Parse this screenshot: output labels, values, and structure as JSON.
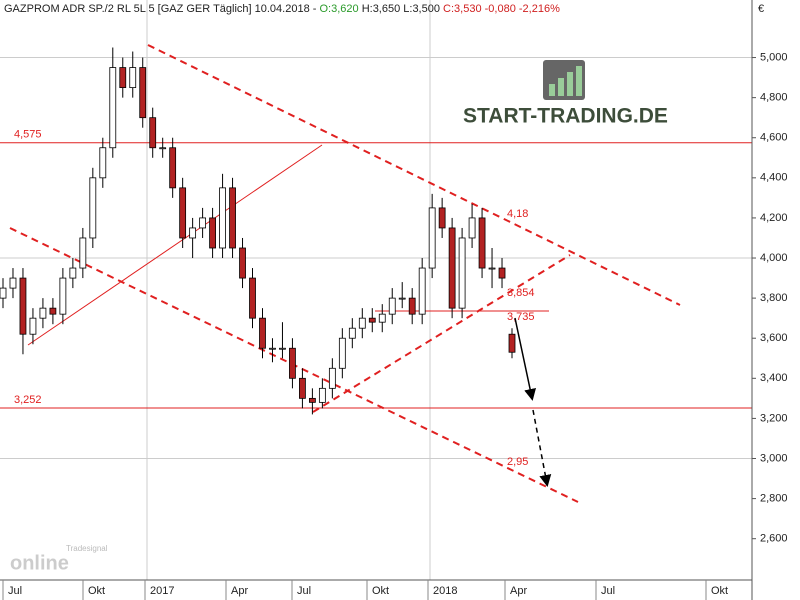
{
  "chart_data": {
    "type": "candlestick",
    "header": {
      "title": "GAZPROM ADR SP./2 RL 5L 5 [GAZ GER  Täglich] 10.04.2018 -",
      "open_text": "O:3,620",
      "high_low_text": "H:3,650 L:3,500",
      "close_text": "C:3,530 -0,080 -2,216%"
    },
    "currency": "€",
    "logo": "START-TRADING.DE",
    "source_logo": {
      "brand": "Tradesignal",
      "word": "online"
    },
    "x_labels": [
      "Jul",
      "Okt",
      "2017",
      "Apr",
      "Jul",
      "Okt",
      "2018",
      "Apr",
      "Jul",
      "Okt"
    ],
    "ylim": [
      2.394,
      5.287
    ],
    "yticks": [
      {
        "value": 2.6,
        "label": "2,600"
      },
      {
        "value": 2.8,
        "label": "2,800"
      },
      {
        "value": 3,
        "label": "3,000"
      },
      {
        "value": 3.2,
        "label": "3,200"
      },
      {
        "value": 3.4,
        "label": "3,400"
      },
      {
        "value": 3.6,
        "label": "3,600"
      },
      {
        "value": 3.8,
        "label": "3,800"
      },
      {
        "value": 4,
        "label": "4,000"
      },
      {
        "value": 4.2,
        "label": "4,200"
      },
      {
        "value": 4.4,
        "label": "4,400"
      },
      {
        "value": 4.6,
        "label": "4,600"
      },
      {
        "value": 4.8,
        "label": "4,800"
      },
      {
        "value": 5,
        "label": "5,000"
      }
    ],
    "grid": true,
    "up_color": "#ffffff",
    "down_color": "#b22222",
    "level_color": "#e02020",
    "levels": [
      {
        "value": 4.575,
        "label": "4,575"
      },
      {
        "value": 3.252,
        "label": "3,252"
      }
    ],
    "annotations": [
      "4,18",
      "3,854",
      "3,735",
      "2,95"
    ],
    "open": [
      3.8,
      3.85,
      3.9,
      3.62,
      3.7,
      3.75,
      3.72,
      3.9,
      3.95,
      4.1,
      4.4,
      4.55,
      4.95,
      4.85,
      4.95,
      4.7,
      4.55,
      4.55,
      4.35,
      4.1,
      4.15,
      4.2,
      4.05,
      4.35,
      4.05,
      3.9,
      3.7,
      3.55,
      3.55,
      3.55,
      3.4,
      3.3,
      3.28,
      3.35,
      3.45,
      3.6,
      3.65,
      3.7,
      3.68,
      3.72,
      3.8,
      3.8,
      3.72,
      3.95,
      4.25,
      4.15,
      3.75,
      4.1,
      4.2,
      3.95,
      3.95,
      3.62
    ],
    "high": [
      3.9,
      3.95,
      3.95,
      3.75,
      3.8,
      3.8,
      3.95,
      4.0,
      4.15,
      4.45,
      4.6,
      5.05,
      5.0,
      5.03,
      5.0,
      4.75,
      4.6,
      4.6,
      4.4,
      4.2,
      4.25,
      4.25,
      4.42,
      4.4,
      4.1,
      3.95,
      3.75,
      3.6,
      3.68,
      3.6,
      3.45,
      3.35,
      3.4,
      3.5,
      3.65,
      3.7,
      3.75,
      3.75,
      3.77,
      3.85,
      3.88,
      3.85,
      4.0,
      4.32,
      4.3,
      4.2,
      4.15,
      4.27,
      4.25,
      4.05,
      4.0,
      3.65
    ],
    "low": [
      3.75,
      3.8,
      3.52,
      3.57,
      3.65,
      3.67,
      3.67,
      3.85,
      3.9,
      4.05,
      4.35,
      4.5,
      4.8,
      4.8,
      4.65,
      4.5,
      4.5,
      4.3,
      4.05,
      4.0,
      4.1,
      4.0,
      4.0,
      4.0,
      3.85,
      3.65,
      3.5,
      3.48,
      3.5,
      3.35,
      3.25,
      3.22,
      3.25,
      3.3,
      3.4,
      3.55,
      3.6,
      3.63,
      3.63,
      3.67,
      3.75,
      3.67,
      3.67,
      3.9,
      4.1,
      3.7,
      3.7,
      4.05,
      3.9,
      3.85,
      3.85,
      3.5
    ],
    "close": [
      3.85,
      3.9,
      3.62,
      3.7,
      3.75,
      3.72,
      3.9,
      3.95,
      4.1,
      4.4,
      4.55,
      4.95,
      4.85,
      4.95,
      4.7,
      4.55,
      4.55,
      4.35,
      4.1,
      4.15,
      4.2,
      4.05,
      4.35,
      4.05,
      3.9,
      3.7,
      3.55,
      3.55,
      3.55,
      3.4,
      3.3,
      3.28,
      3.35,
      3.45,
      3.6,
      3.65,
      3.7,
      3.68,
      3.72,
      3.8,
      3.8,
      3.72,
      3.95,
      4.25,
      4.15,
      3.75,
      4.1,
      4.2,
      3.95,
      3.95,
      3.9,
      3.53
    ]
  }
}
